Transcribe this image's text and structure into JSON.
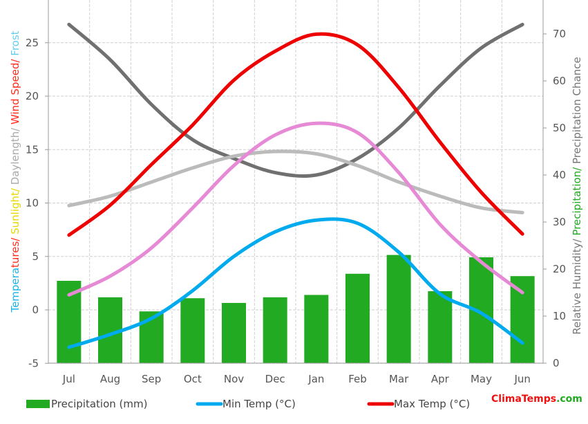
{
  "chart_data": {
    "type": "bar",
    "categories": [
      "Jul",
      "Aug",
      "Sep",
      "Oct",
      "Nov",
      "Dec",
      "Jan",
      "Feb",
      "Mar",
      "Apr",
      "May",
      "Jun"
    ],
    "left_axis": {
      "ylim": [
        -5,
        28
      ],
      "ticks": [
        -5,
        0,
        5,
        10,
        15,
        20,
        25
      ]
    },
    "right_axis": {
      "ylim": [
        0,
        77
      ],
      "ticks": [
        0,
        10,
        20,
        30,
        40,
        50,
        60,
        70
      ]
    },
    "left_label_parts": [
      {
        "text": "Temperatures/",
        "color": "#ff2a1a",
        "head": "Tempera",
        "head_color": "#1ab3e6"
      },
      {
        "text": " Sunlight/",
        "color": "#e8d800"
      },
      {
        "text": " Daylength/",
        "color": "#aaaaaa"
      },
      {
        "text": " Wind Speed/",
        "color": "#ff2a1a"
      },
      {
        "text": " Frost",
        "color": "#66ccee"
      }
    ],
    "right_label_parts": [
      {
        "text": "Relative Humidity/",
        "color": "#777777"
      },
      {
        "text": " Precipitation/",
        "color": "#22aa22"
      },
      {
        "text": " Precipitation Chance",
        "color": "#777777"
      }
    ],
    "series": [
      {
        "name": "Precipitation (mm)",
        "kind": "bar",
        "axis": "right",
        "color": "#22aa22",
        "values": [
          17.5,
          14,
          11,
          13.8,
          12.8,
          14,
          14.5,
          19,
          23,
          15.3,
          22.5,
          18.5
        ]
      },
      {
        "name": "Min Temp (°C)",
        "kind": "line",
        "axis": "left",
        "color": "#00aaee",
        "values": [
          -3.5,
          -2.3,
          -0.8,
          1.8,
          5,
          7.3,
          8.4,
          8.1,
          5.4,
          1.5,
          -0.3,
          -3.1
        ]
      },
      {
        "name": "Max Temp (°C)",
        "kind": "line",
        "axis": "left",
        "color": "#ee0000",
        "values": [
          7,
          9.8,
          13.6,
          17.3,
          21.5,
          24.2,
          25.8,
          24.8,
          20.8,
          15.7,
          11,
          7.1
        ]
      },
      {
        "kind": "line",
        "axis": "right",
        "color": "#e68ad6",
        "values": [
          14.5,
          18.5,
          24.5,
          33,
          42,
          48.5,
          51,
          49,
          40.5,
          29.5,
          21.5,
          15
        ]
      },
      {
        "kind": "line",
        "axis": "right",
        "color": "#bbbbbb",
        "values": [
          33.5,
          35.5,
          38.5,
          41.5,
          44,
          45,
          44.5,
          42,
          38.5,
          35.5,
          33,
          32
        ]
      },
      {
        "kind": "line",
        "axis": "right",
        "color": "#707070",
        "values": [
          72,
          64.5,
          55,
          47.5,
          43.5,
          40.5,
          40,
          43.5,
          50,
          59,
          67,
          72
        ]
      }
    ],
    "legend": [
      {
        "label": "Precipitation (mm)",
        "color": "#22aa22",
        "type": "bar"
      },
      {
        "label": "Min Temp (°C)",
        "color": "#00aaee",
        "type": "line"
      },
      {
        "label": "Max Temp (°C)",
        "color": "#ee0000",
        "type": "line"
      }
    ],
    "legend_placement": "bottom",
    "grid": true
  },
  "branding": {
    "part1": "Clima",
    "part2": "Temps",
    "part3": ".com",
    "color1": "#ee1111",
    "color2": "#22aa22"
  }
}
